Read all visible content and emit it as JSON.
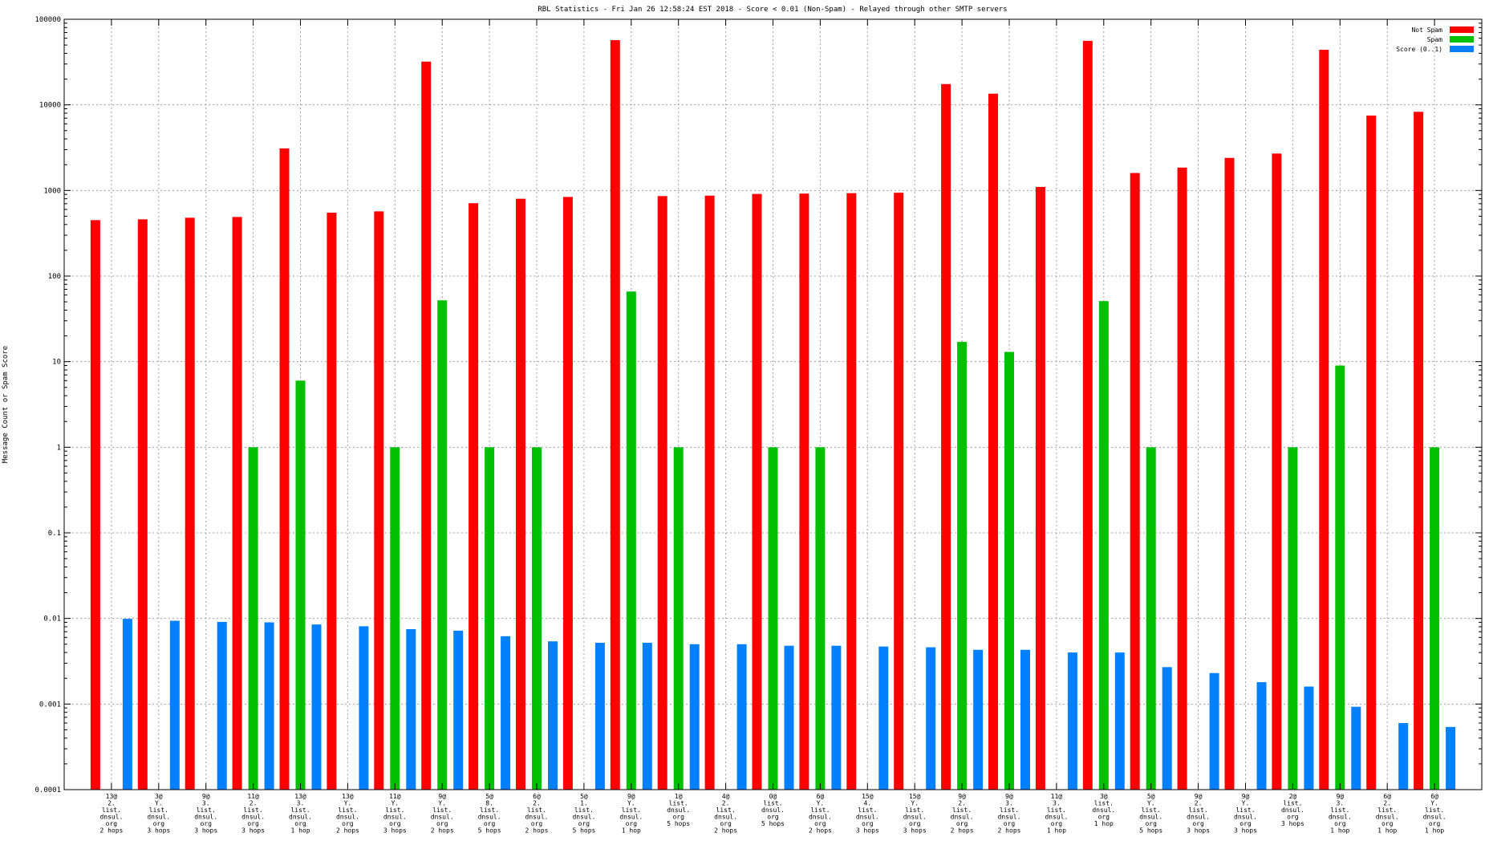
{
  "chart_data": {
    "type": "bar",
    "title": "RBL Statistics - Fri Jan 26 12:58:24 EST 2018 - Score < 0.01 (Non-Spam) - Relayed through other SMTP servers",
    "xlabel": "",
    "ylabel": "Message Count or Spam Score",
    "y_scale": "log",
    "ylim": [
      0.0001,
      100000
    ],
    "y_ticks": [
      {
        "value": 0.0001,
        "label": "0.0001"
      },
      {
        "value": 0.001,
        "label": "0.001"
      },
      {
        "value": 0.01,
        "label": "0.01"
      },
      {
        "value": 0.1,
        "label": "0.1"
      },
      {
        "value": 1,
        "label": "1"
      },
      {
        "value": 10,
        "label": "10"
      },
      {
        "value": 100,
        "label": "100"
      },
      {
        "value": 1000,
        "label": "1000"
      },
      {
        "value": 10000,
        "label": "10000"
      },
      {
        "value": 100000,
        "label": "100000"
      }
    ],
    "grid": true,
    "legend_position": "top-right",
    "categories": [
      [
        "13@",
        "2.",
        "list.",
        "dnsul.",
        "org",
        "2 hops"
      ],
      [
        "3@",
        "Y.",
        "list.",
        "dnsul.",
        "org",
        "3 hops"
      ],
      [
        "9@",
        "3.",
        "list.",
        "dnsul.",
        "org",
        "3 hops"
      ],
      [
        "11@",
        "2.",
        "list.",
        "dnsul.",
        "org",
        "3 hops"
      ],
      [
        "13@",
        "3.",
        "list.",
        "dnsul.",
        "org",
        "1 hop"
      ],
      [
        "13@",
        "Y.",
        "list.",
        "dnsul.",
        "org",
        "2 hops"
      ],
      [
        "11@",
        "Y.",
        "list.",
        "dnsul.",
        "org",
        "3 hops"
      ],
      [
        "9@",
        "Y.",
        "list.",
        "dnsul.",
        "org",
        "2 hops"
      ],
      [
        "5@",
        "8.",
        "list.",
        "dnsul.",
        "org",
        "5 hops"
      ],
      [
        "6@",
        "2.",
        "list.",
        "dnsul.",
        "org",
        "2 hops"
      ],
      [
        "5@",
        "1.",
        "list.",
        "dnsul.",
        "org",
        "5 hops"
      ],
      [
        "9@",
        "Y.",
        "list.",
        "dnsul.",
        "org",
        "1 hop"
      ],
      [
        "1@",
        "list.",
        "dnsul.",
        "org",
        "5 hops"
      ],
      [
        "4@",
        "2.",
        "list.",
        "dnsul.",
        "org",
        "2 hops"
      ],
      [
        "0@",
        "list.",
        "dnsul.",
        "org",
        "5 hops"
      ],
      [
        "6@",
        "Y.",
        "list.",
        "dnsul.",
        "org",
        "2 hops"
      ],
      [
        "15@",
        "4.",
        "list.",
        "dnsul.",
        "org",
        "3 hops"
      ],
      [
        "15@",
        "Y.",
        "list.",
        "dnsul.",
        "org",
        "3 hops"
      ],
      [
        "9@",
        "2.",
        "list.",
        "dnsul.",
        "org",
        "2 hops"
      ],
      [
        "9@",
        "3.",
        "list.",
        "dnsul.",
        "org",
        "2 hops"
      ],
      [
        "11@",
        "3.",
        "list.",
        "dnsul.",
        "org",
        "1 hop"
      ],
      [
        "3@",
        "list.",
        "dnsul.",
        "org",
        "1 hop"
      ],
      [
        "5@",
        "Y.",
        "list.",
        "dnsul.",
        "org",
        "5 hops"
      ],
      [
        "9@",
        "2.",
        "list.",
        "dnsul.",
        "org",
        "3 hops"
      ],
      [
        "9@",
        "Y.",
        "list.",
        "dnsul.",
        "org",
        "3 hops"
      ],
      [
        "2@",
        "list.",
        "dnsul.",
        "org",
        "3 hops"
      ],
      [
        "9@",
        "3.",
        "list.",
        "dnsul.",
        "org",
        "1 hop"
      ],
      [
        "6@",
        "2.",
        "list.",
        "dnsul.",
        "org",
        "1 hop"
      ],
      [
        "6@",
        "Y.",
        "list.",
        "dnsul.",
        "org",
        "1 hop"
      ]
    ],
    "series": [
      {
        "name": "Not Spam",
        "color": "#ff0000",
        "values": [
          450,
          460,
          480,
          490,
          3100,
          550,
          570,
          32000,
          710,
          800,
          840,
          57000,
          860,
          870,
          910,
          920,
          930,
          940,
          17500,
          13500,
          1100,
          56000,
          1600,
          1850,
          2400,
          2700,
          44000,
          7500,
          8300
        ]
      },
      {
        "name": "Spam",
        "color": "#00c000",
        "values": [
          null,
          null,
          null,
          1,
          6,
          null,
          1,
          52,
          1,
          1,
          null,
          66,
          1,
          null,
          1,
          1,
          null,
          null,
          17,
          13,
          null,
          51,
          1,
          null,
          null,
          1,
          9,
          null,
          1
        ]
      },
      {
        "name": "Score (0..1)",
        "color": "#0080ff",
        "values": [
          0.0099,
          0.0094,
          0.0091,
          0.009,
          0.0085,
          0.0081,
          0.0075,
          0.0072,
          0.0062,
          0.0054,
          0.0052,
          0.0052,
          0.005,
          0.005,
          0.0048,
          0.0048,
          0.0047,
          0.0046,
          0.0043,
          0.0043,
          0.004,
          0.004,
          0.0027,
          0.0023,
          0.0018,
          0.0016,
          0.00093,
          0.0006,
          0.00054
        ]
      }
    ]
  }
}
